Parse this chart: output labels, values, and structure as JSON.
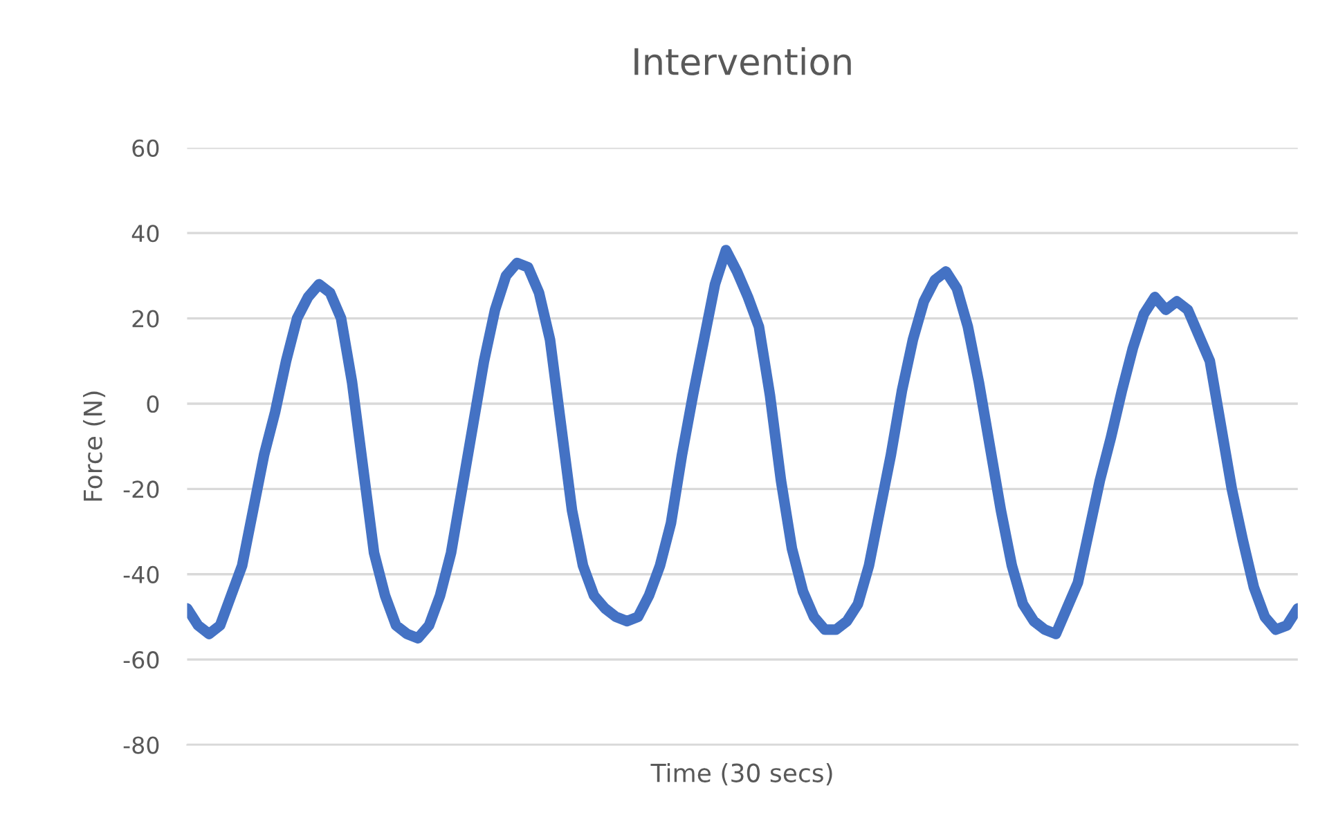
{
  "chart_data": {
    "type": "line",
    "title": "Intervention",
    "xlabel": "Time (30 secs)",
    "ylabel": "Force (N)",
    "categories": [
      null,
      null,
      null,
      null,
      null,
      null,
      null,
      null,
      null,
      null,
      null,
      null,
      null,
      null,
      null,
      null,
      null,
      null,
      null,
      null,
      null,
      null,
      null,
      null,
      null,
      null,
      null,
      null,
      null,
      null,
      null,
      null,
      null,
      null,
      null,
      null,
      null,
      null,
      null,
      null,
      null,
      null,
      null,
      null,
      null,
      null,
      null,
      null,
      null,
      null,
      null,
      null,
      null,
      null,
      null,
      null,
      null,
      null,
      null,
      null,
      null,
      null,
      null,
      null,
      null,
      null,
      null,
      null,
      null,
      null,
      null,
      null,
      null,
      null,
      null,
      null,
      null,
      null,
      null,
      null,
      null,
      null,
      null,
      null,
      null,
      null,
      null,
      null,
      null,
      null,
      null,
      null,
      null,
      null,
      null,
      null,
      null,
      null,
      null,
      null,
      null,
      null
    ],
    "series": [
      {
        "color": "#4472c4",
        "values": [
          -48,
          -52,
          -54,
          -52,
          -45,
          -38,
          -25,
          -12,
          -2,
          10,
          20,
          25,
          28,
          26,
          20,
          5,
          -15,
          -35,
          -45,
          -52,
          -54,
          -55,
          -52,
          -45,
          -35,
          -20,
          -5,
          10,
          22,
          30,
          33,
          32,
          26,
          15,
          -5,
          -25,
          -38,
          -45,
          -48,
          -50,
          -51,
          -50,
          -45,
          -38,
          -28,
          -12,
          2,
          15,
          28,
          36,
          31,
          25,
          18,
          2,
          -18,
          -34,
          -44,
          -50,
          -53,
          -53,
          -51,
          -47,
          -38,
          -25,
          -12,
          3,
          15,
          24,
          29,
          31,
          27,
          18,
          5,
          -10,
          -25,
          -38,
          -47,
          -51,
          -53,
          -54,
          -48,
          -42,
          -30,
          -18,
          -8,
          3,
          13,
          21,
          25,
          22,
          24,
          22,
          16,
          10,
          -5,
          -20,
          -32,
          -43,
          -50,
          -53,
          -52,
          -48
        ]
      }
    ],
    "ylim": [
      -80,
      60
    ],
    "yticks": [
      -80,
      -60,
      -40,
      -20,
      0,
      20,
      40,
      60
    ],
    "grid": "y",
    "legend": false,
    "marker": "none",
    "line_style": "solid",
    "tick_labels": "y"
  }
}
